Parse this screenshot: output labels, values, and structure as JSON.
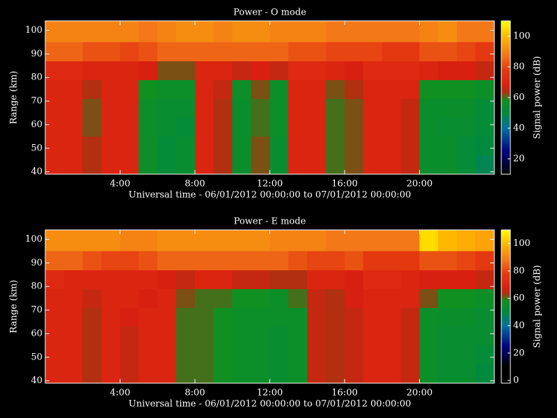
{
  "chart_data": [
    {
      "type": "heatmap",
      "title": "Power - O mode",
      "x_label": "Universal time - 06/01/2012 00:00:00 to 07/01/2012 00:00:00",
      "y_label": "Range (km)",
      "colorbar_label": "Signal power (dB)",
      "xbins": [
        0,
        1,
        2,
        3,
        4,
        5,
        6,
        7,
        8,
        9,
        10,
        11,
        12,
        13,
        14,
        15,
        16,
        17,
        18,
        19,
        20,
        21,
        22,
        23,
        24
      ],
      "ybins": [
        39,
        47,
        55,
        63,
        71,
        79,
        87,
        95,
        104
      ],
      "z": [
        [
          70,
          70,
          64,
          70,
          70,
          56,
          52,
          54,
          70,
          64,
          55,
          62,
          54,
          70,
          70,
          60,
          62,
          70,
          70,
          66,
          55,
          55,
          52,
          48
        ],
        [
          70,
          70,
          64,
          70,
          70,
          56,
          52,
          54,
          70,
          64,
          55,
          62,
          54,
          70,
          70,
          60,
          62,
          70,
          70,
          66,
          55,
          55,
          52,
          50
        ],
        [
          70,
          70,
          62,
          70,
          70,
          56,
          54,
          52,
          70,
          64,
          55,
          60,
          56,
          70,
          70,
          60,
          62,
          70,
          70,
          66,
          55,
          54,
          54,
          52
        ],
        [
          70,
          70,
          62,
          70,
          70,
          56,
          54,
          54,
          70,
          64,
          55,
          60,
          56,
          70,
          70,
          60,
          62,
          70,
          70,
          66,
          55,
          55,
          55,
          52
        ],
        [
          70,
          70,
          64,
          70,
          70,
          58,
          56,
          56,
          70,
          66,
          56,
          62,
          56,
          70,
          70,
          62,
          64,
          70,
          70,
          70,
          58,
          58,
          58,
          56
        ],
        [
          72,
          72,
          70,
          70,
          70,
          68,
          62,
          62,
          70,
          70,
          66,
          68,
          66,
          72,
          72,
          70,
          68,
          72,
          72,
          72,
          70,
          68,
          68,
          66
        ],
        [
          85,
          85,
          82,
          82,
          80,
          82,
          85,
          85,
          85,
          85,
          85,
          85,
          85,
          82,
          82,
          80,
          80,
          80,
          78,
          78,
          82,
          82,
          80,
          78
        ],
        [
          90,
          90,
          90,
          90,
          90,
          88,
          90,
          92,
          92,
          90,
          92,
          92,
          90,
          90,
          90,
          88,
          88,
          88,
          88,
          88,
          90,
          92,
          88,
          88
        ]
      ],
      "xlim": [
        0,
        24
      ],
      "ylim": [
        39,
        104
      ],
      "xticks": [
        {
          "value": 4,
          "label": "4:00"
        },
        {
          "value": 8,
          "label": "8:00"
        },
        {
          "value": 12,
          "label": "12:00"
        },
        {
          "value": 16,
          "label": "16:00"
        },
        {
          "value": 20,
          "label": "20:00"
        }
      ],
      "yticks": [
        40,
        50,
        60,
        70,
        80,
        90,
        100
      ],
      "zlim": [
        10,
        110
      ],
      "zticks": [
        20,
        40,
        60,
        80,
        100
      ],
      "colorscale": [
        {
          "value": 10,
          "color": "#000000"
        },
        {
          "value": 25,
          "color": "#000080"
        },
        {
          "value": 40,
          "color": "#0070a0"
        },
        {
          "value": 50,
          "color": "#008a40"
        },
        {
          "value": 58,
          "color": "#109020"
        },
        {
          "value": 64,
          "color": "#b03010"
        },
        {
          "value": 68,
          "color": "#d82010"
        },
        {
          "value": 78,
          "color": "#e43810"
        },
        {
          "value": 88,
          "color": "#f27818"
        },
        {
          "value": 100,
          "color": "#ffb800"
        },
        {
          "value": 110,
          "color": "#ffff00"
        }
      ]
    },
    {
      "type": "heatmap",
      "title": "Power - E mode",
      "x_label": "Universal time - 06/01/2012 00:00:00 to 07/01/2012 00:00:00",
      "y_label": "Range (km)",
      "colorbar_label": "Signal power (dB)",
      "xbins": [
        0,
        1,
        2,
        3,
        4,
        5,
        6,
        7,
        8,
        9,
        10,
        11,
        12,
        13,
        14,
        15,
        16,
        17,
        18,
        19,
        20,
        21,
        22,
        23,
        24
      ],
      "ybins": [
        39,
        47,
        55,
        63,
        71,
        79,
        87,
        95,
        104
      ],
      "z": [
        [
          70,
          70,
          64,
          70,
          66,
          70,
          70,
          60,
          60,
          58,
          56,
          56,
          54,
          56,
          66,
          64,
          66,
          70,
          70,
          66,
          56,
          54,
          54,
          50
        ],
        [
          70,
          70,
          64,
          70,
          66,
          70,
          70,
          60,
          60,
          58,
          56,
          56,
          54,
          56,
          66,
          64,
          66,
          70,
          70,
          66,
          56,
          54,
          54,
          52
        ],
        [
          70,
          70,
          64,
          70,
          66,
          70,
          70,
          60,
          60,
          58,
          56,
          56,
          54,
          56,
          66,
          64,
          66,
          70,
          70,
          66,
          56,
          54,
          54,
          54
        ],
        [
          70,
          70,
          64,
          70,
          68,
          70,
          70,
          60,
          60,
          58,
          56,
          56,
          56,
          56,
          66,
          64,
          66,
          70,
          70,
          66,
          56,
          55,
          55,
          54
        ],
        [
          70,
          70,
          66,
          70,
          70,
          68,
          70,
          62,
          60,
          60,
          58,
          58,
          56,
          60,
          66,
          64,
          68,
          70,
          70,
          70,
          62,
          58,
          58,
          56
        ],
        [
          72,
          70,
          70,
          70,
          70,
          70,
          68,
          66,
          70,
          70,
          66,
          66,
          64,
          64,
          70,
          70,
          68,
          72,
          72,
          70,
          68,
          68,
          68,
          66
        ],
        [
          85,
          85,
          82,
          80,
          80,
          82,
          85,
          85,
          85,
          85,
          85,
          85,
          85,
          82,
          80,
          80,
          82,
          78,
          78,
          78,
          82,
          82,
          80,
          78
        ],
        [
          92,
          92,
          92,
          92,
          90,
          90,
          92,
          92,
          92,
          92,
          92,
          92,
          90,
          90,
          90,
          88,
          88,
          88,
          88,
          88,
          105,
          100,
          98,
          96
        ]
      ],
      "xlim": [
        0,
        24
      ],
      "ylim": [
        39,
        104
      ],
      "xticks": [
        {
          "value": 4,
          "label": "4:00"
        },
        {
          "value": 8,
          "label": "8:00"
        },
        {
          "value": 12,
          "label": "12:00"
        },
        {
          "value": 16,
          "label": "16:00"
        },
        {
          "value": 20,
          "label": "20:00"
        }
      ],
      "yticks": [
        40,
        50,
        60,
        70,
        80,
        90,
        100
      ],
      "zlim": [
        -2,
        110
      ],
      "zticks": [
        0,
        20,
        40,
        60,
        80,
        100
      ],
      "colorscale": [
        {
          "value": 10,
          "color": "#000000"
        },
        {
          "value": 25,
          "color": "#000080"
        },
        {
          "value": 40,
          "color": "#0070a0"
        },
        {
          "value": 50,
          "color": "#008a40"
        },
        {
          "value": 58,
          "color": "#109020"
        },
        {
          "value": 64,
          "color": "#b03010"
        },
        {
          "value": 68,
          "color": "#d82010"
        },
        {
          "value": 78,
          "color": "#e43810"
        },
        {
          "value": 88,
          "color": "#f27818"
        },
        {
          "value": 100,
          "color": "#ffb800"
        },
        {
          "value": 110,
          "color": "#ffff00"
        }
      ]
    }
  ]
}
